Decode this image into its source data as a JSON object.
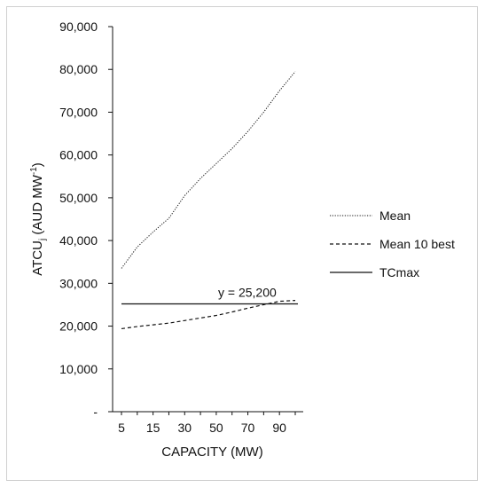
{
  "chart_data": {
    "type": "line",
    "xlabel": "CAPACITY (MW)",
    "ylabel_main": "ATCU",
    "ylabel_sub": "j",
    "ylabel_unit": " (AUD MW",
    "ylabel_sup": "-1",
    "ylabel_close": ")",
    "x_tick_labels": [
      "5",
      "15",
      "30",
      "50",
      "70",
      "90"
    ],
    "y_tick_labels": [
      "-",
      "10,000",
      "20,000",
      "30,000",
      "40,000",
      "50,000",
      "60,000",
      "70,000",
      "80,000",
      "90,000"
    ],
    "ylim": [
      0,
      90000
    ],
    "x": [
      5,
      10,
      15,
      20,
      30,
      40,
      50,
      60,
      70,
      80,
      90,
      100
    ],
    "series": [
      {
        "name": "Mean",
        "style": "dotted",
        "values": [
          33500,
          38500,
          42000,
          45200,
          50500,
          54500,
          58000,
          61500,
          65500,
          70000,
          75000,
          79500
        ]
      },
      {
        "name": "Mean 10 best",
        "style": "dashed",
        "values": [
          19400,
          19900,
          20300,
          20700,
          21300,
          21900,
          22500,
          23300,
          24200,
          25000,
          25800,
          26000
        ]
      },
      {
        "name": "TCmax",
        "style": "solid",
        "values": [
          25200,
          25200,
          25200,
          25200,
          25200,
          25200,
          25200,
          25200,
          25200,
          25200,
          25200,
          25200
        ]
      }
    ],
    "annotation": "y = 25,200",
    "grid": false,
    "legend_position": "right"
  }
}
